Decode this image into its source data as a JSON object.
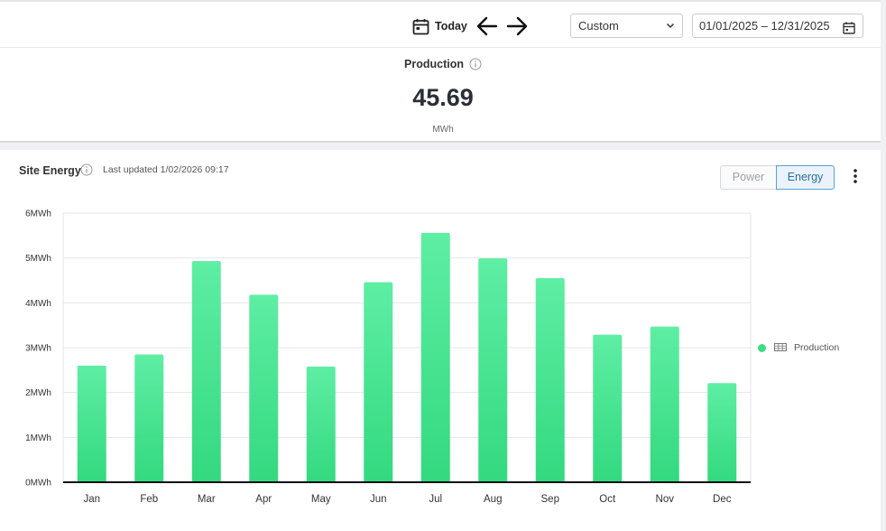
{
  "toolbar": {
    "today_label": "Today",
    "period_select": "Custom",
    "date_range": "01/01/2025 – 12/31/2025"
  },
  "kpi": {
    "title": "Production",
    "value": "45.69",
    "unit": "MWh"
  },
  "card": {
    "title": "Site Energy",
    "last_updated": "Last updated 1/02/2026 09:17",
    "toggle_power": "Power",
    "toggle_energy": "Energy",
    "active_toggle": "Energy"
  },
  "colors": {
    "bar_top": "#5eeea4",
    "bar_bottom": "#33d97f",
    "accent": "#5a9fd4"
  },
  "chart_data": {
    "type": "bar",
    "categories": [
      "Jan",
      "Feb",
      "Mar",
      "Apr",
      "May",
      "Jun",
      "Jul",
      "Aug",
      "Sep",
      "Oct",
      "Nov",
      "Dec"
    ],
    "series": [
      {
        "name": "Production",
        "values": [
          2.6,
          2.85,
          4.93,
          4.18,
          2.58,
          4.46,
          5.56,
          4.99,
          4.55,
          3.29,
          3.47,
          2.21
        ]
      }
    ],
    "ylim": [
      0,
      6
    ],
    "yticks": [
      "0MWh",
      "1MWh",
      "2MWh",
      "3MWh",
      "4MWh",
      "5MWh",
      "6MWh"
    ],
    "ylabel": "",
    "xlabel": "",
    "grid": true,
    "legend_position": "right"
  }
}
